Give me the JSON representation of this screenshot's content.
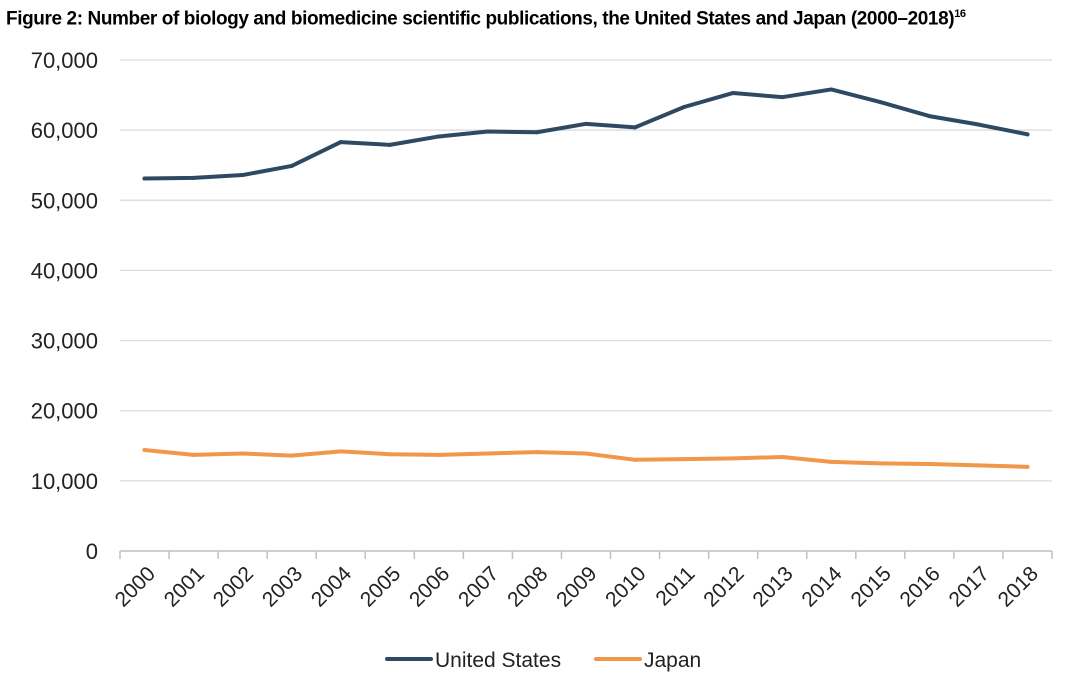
{
  "figure": {
    "title": "Figure 2: Number of biology and biomedicine scientific publications, the United States and Japan (2000–2018)",
    "footnote": "16"
  },
  "chart_data": {
    "type": "line",
    "title": "Figure 2: Number of biology and biomedicine scientific publications, the United States and Japan (2000–2018)",
    "xlabel": "",
    "ylabel": "",
    "categories": [
      "2000",
      "2001",
      "2002",
      "2003",
      "2004",
      "2005",
      "2006",
      "2007",
      "2008",
      "2009",
      "2010",
      "2011",
      "2012",
      "2013",
      "2014",
      "2015",
      "2016",
      "2017",
      "2018"
    ],
    "ylim": [
      0,
      70000
    ],
    "yticks": [
      0,
      10000,
      20000,
      30000,
      40000,
      50000,
      60000,
      70000
    ],
    "ytick_labels": [
      "0",
      "10,000",
      "20,000",
      "30,000",
      "40,000",
      "50,000",
      "60,000",
      "70,000"
    ],
    "grid": true,
    "legend_position": "bottom",
    "series": [
      {
        "name": "United States",
        "color": "#2e4a62",
        "values": [
          53100,
          53200,
          53600,
          54900,
          58300,
          57900,
          59100,
          59800,
          59700,
          60900,
          60400,
          63300,
          65300,
          64700,
          65800,
          64000,
          62000,
          60800,
          59400
        ]
      },
      {
        "name": "Japan",
        "color": "#f0974a",
        "values": [
          14400,
          13700,
          13900,
          13600,
          14200,
          13800,
          13700,
          13900,
          14100,
          13900,
          13000,
          13100,
          13200,
          13400,
          12700,
          12500,
          12400,
          12200,
          12000
        ]
      }
    ]
  }
}
